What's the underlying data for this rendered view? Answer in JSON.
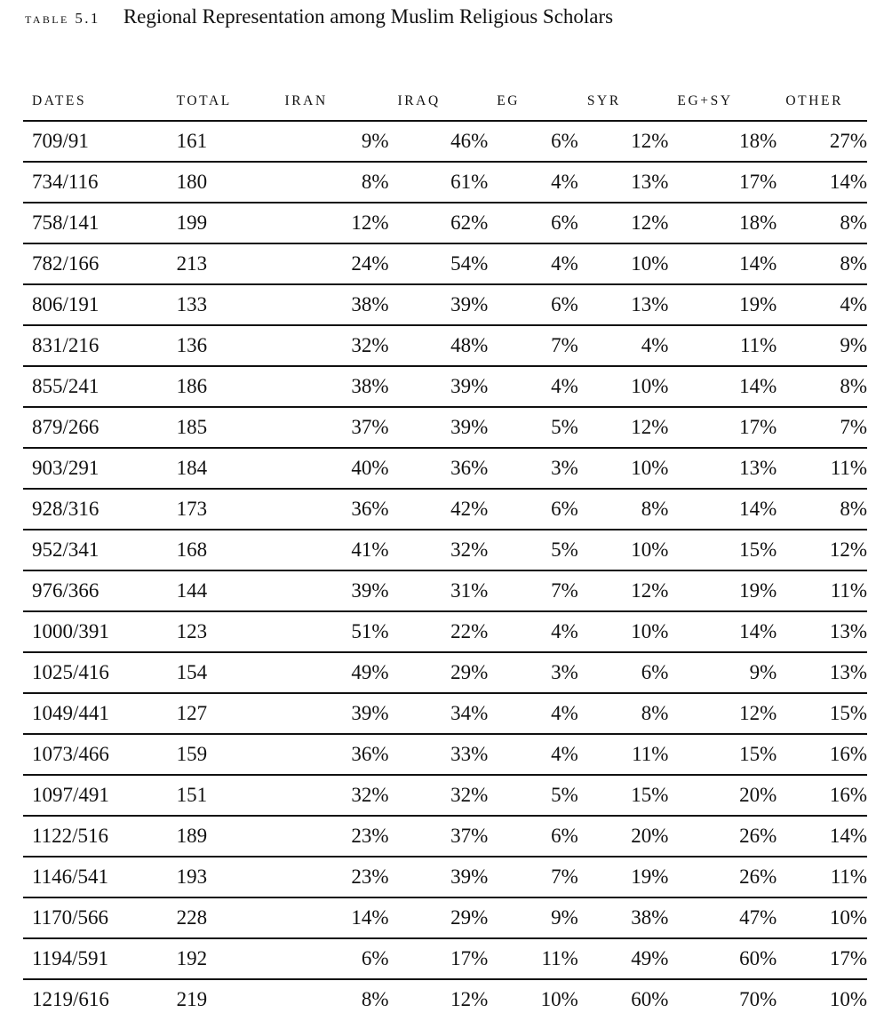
{
  "caption": {
    "label": "TABLE 5.1",
    "title": "Regional Representation among Muslim Religious Scholars"
  },
  "headers": [
    "DATES",
    "TOTAL",
    "IRAN",
    "IRAQ",
    "EG",
    "SYR",
    "EG+SY",
    "OTHER"
  ],
  "rows": [
    [
      "709/91",
      "161",
      "9%",
      "46%",
      "6%",
      "12%",
      "18%",
      "27%"
    ],
    [
      "734/116",
      "180",
      "8%",
      "61%",
      "4%",
      "13%",
      "17%",
      "14%"
    ],
    [
      "758/141",
      "199",
      "12%",
      "62%",
      "6%",
      "12%",
      "18%",
      "8%"
    ],
    [
      "782/166",
      "213",
      "24%",
      "54%",
      "4%",
      "10%",
      "14%",
      "8%"
    ],
    [
      "806/191",
      "133",
      "38%",
      "39%",
      "6%",
      "13%",
      "19%",
      "4%"
    ],
    [
      "831/216",
      "136",
      "32%",
      "48%",
      "7%",
      "4%",
      "11%",
      "9%"
    ],
    [
      "855/241",
      "186",
      "38%",
      "39%",
      "4%",
      "10%",
      "14%",
      "8%"
    ],
    [
      "879/266",
      "185",
      "37%",
      "39%",
      "5%",
      "12%",
      "17%",
      "7%"
    ],
    [
      "903/291",
      "184",
      "40%",
      "36%",
      "3%",
      "10%",
      "13%",
      "11%"
    ],
    [
      "928/316",
      "173",
      "36%",
      "42%",
      "6%",
      "8%",
      "14%",
      "8%"
    ],
    [
      "952/341",
      "168",
      "41%",
      "32%",
      "5%",
      "10%",
      "15%",
      "12%"
    ],
    [
      "976/366",
      "144",
      "39%",
      "31%",
      "7%",
      "12%",
      "19%",
      "11%"
    ],
    [
      "1000/391",
      "123",
      "51%",
      "22%",
      "4%",
      "10%",
      "14%",
      "13%"
    ],
    [
      "1025/416",
      "154",
      "49%",
      "29%",
      "3%",
      "6%",
      "9%",
      "13%"
    ],
    [
      "1049/441",
      "127",
      "39%",
      "34%",
      "4%",
      "8%",
      "12%",
      "15%"
    ],
    [
      "1073/466",
      "159",
      "36%",
      "33%",
      "4%",
      "11%",
      "15%",
      "16%"
    ],
    [
      "1097/491",
      "151",
      "32%",
      "32%",
      "5%",
      "15%",
      "20%",
      "16%"
    ],
    [
      "1122/516",
      "189",
      "23%",
      "37%",
      "6%",
      "20%",
      "26%",
      "14%"
    ],
    [
      "1146/541",
      "193",
      "23%",
      "39%",
      "7%",
      "19%",
      "26%",
      "11%"
    ],
    [
      "1170/566",
      "228",
      "14%",
      "29%",
      "9%",
      "38%",
      "47%",
      "10%"
    ],
    [
      "1194/591",
      "192",
      "6%",
      "17%",
      "11%",
      "49%",
      "60%",
      "17%"
    ],
    [
      "1219/616",
      "219",
      "8%",
      "12%",
      "10%",
      "60%",
      "70%",
      "10%"
    ]
  ]
}
